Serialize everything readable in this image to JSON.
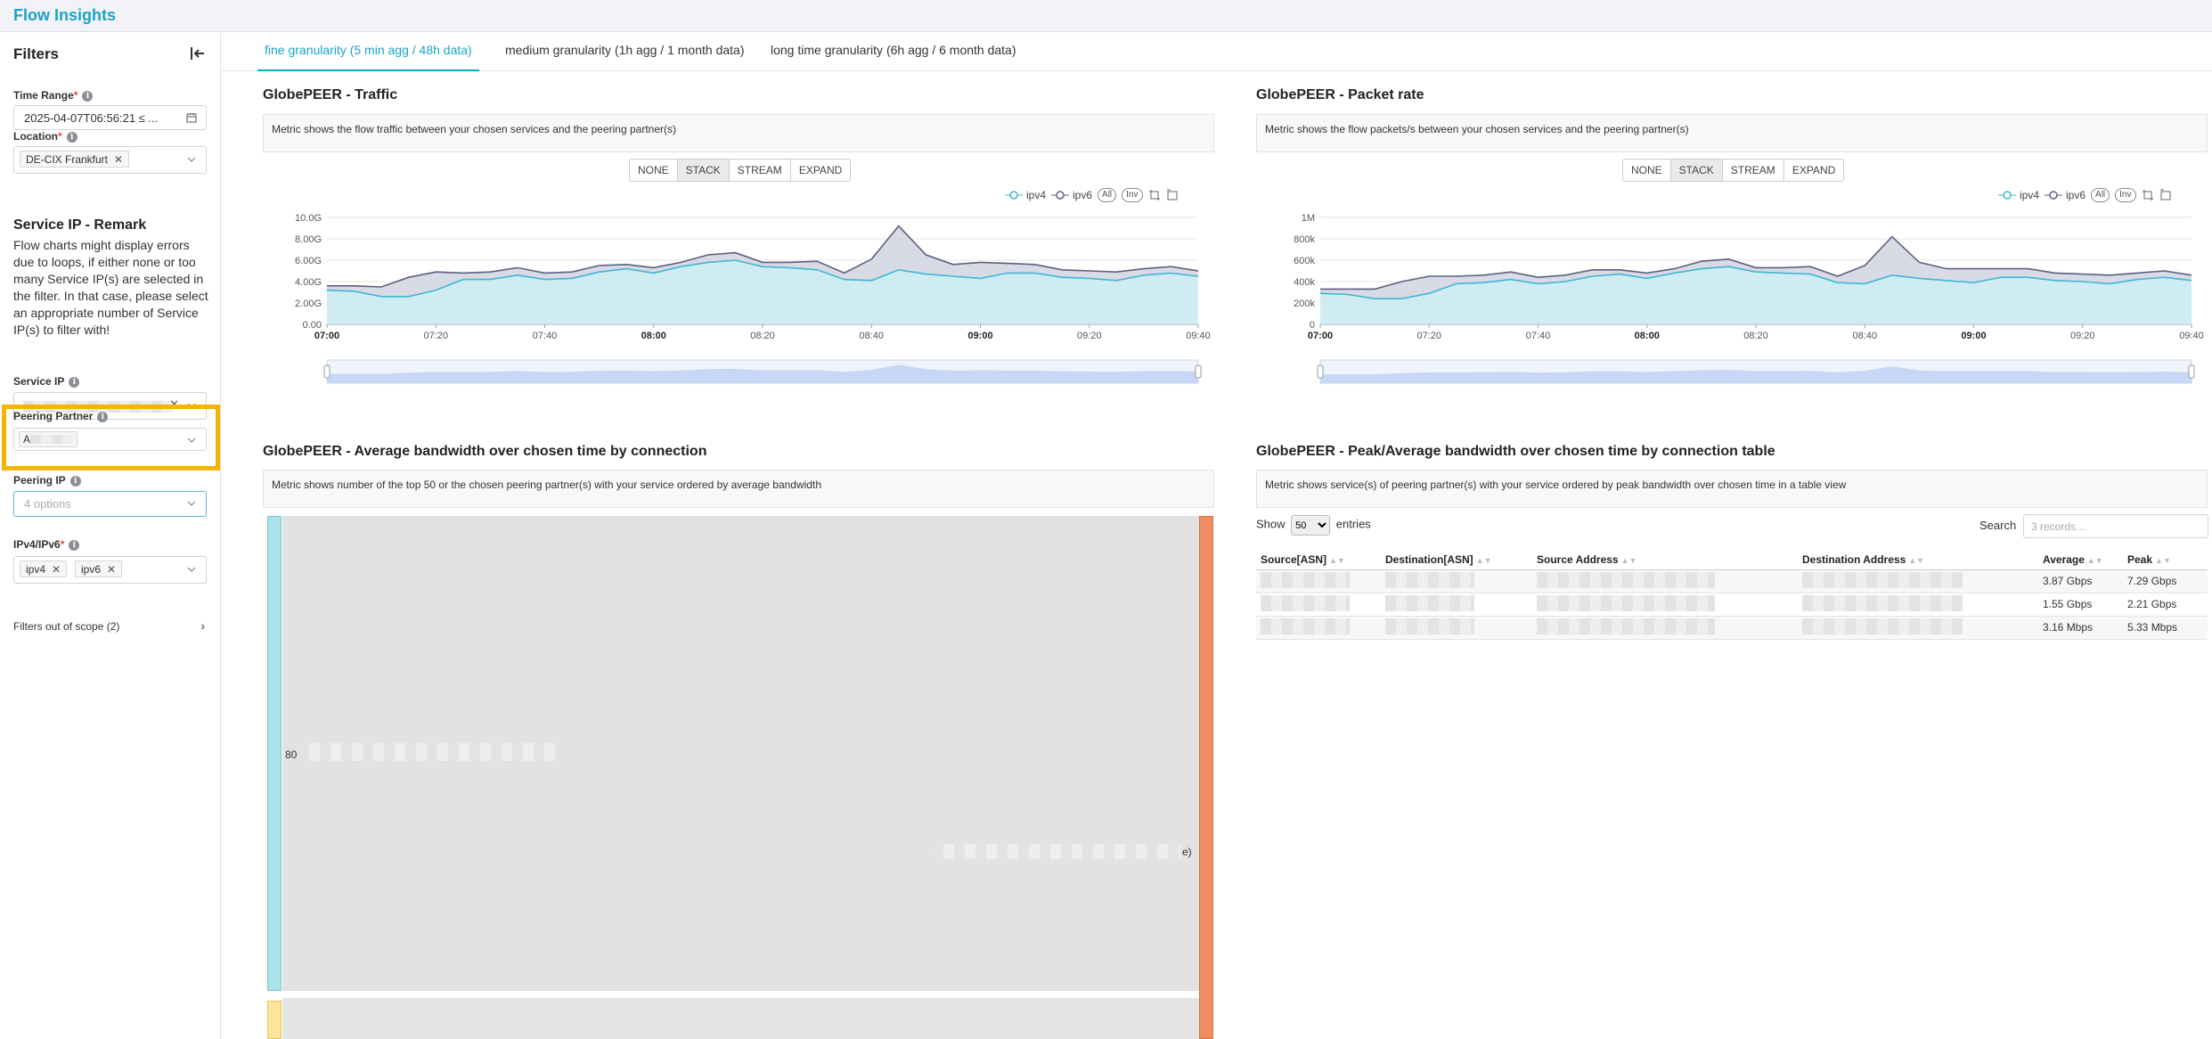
{
  "app": {
    "title": "Flow Insights"
  },
  "sidebar": {
    "title": "Filters",
    "time_range": {
      "label": "Time Range",
      "value": "2025-04-07T06:56:21 ≤ ..."
    },
    "location": {
      "label": "Location",
      "tags": [
        "DE-CIX Frankfurt"
      ]
    },
    "remark": {
      "title": "Service IP - Remark",
      "text": "Flow charts might display errors due to loops, if either none or too many Service IP(s) are selected in the filter. In that case, please select an appropriate number of Service IP(s) to filter with!"
    },
    "service_ip": {
      "label": "Service IP"
    },
    "peering_partner": {
      "label": "Peering Partner",
      "value_prefix": "A"
    },
    "peering_ip": {
      "label": "Peering IP",
      "placeholder": "4 options"
    },
    "ip_version": {
      "label": "IPv4/IPv6",
      "tags": [
        "ipv4",
        "ipv6"
      ]
    },
    "out_of_scope": {
      "label": "Filters out of scope (2)"
    }
  },
  "tabs": [
    {
      "label": "fine granularity (5 min agg / 48h data)",
      "active": true
    },
    {
      "label": "medium granularity (1h agg / 1 month data)",
      "active": false
    },
    {
      "label": "long time granularity (6h agg / 6 month data)",
      "active": false
    }
  ],
  "stack_modes": [
    "NONE",
    "STACK",
    "STREAM",
    "EXPAND"
  ],
  "active_stack_mode": "STACK",
  "legend": {
    "series": [
      "ipv4",
      "ipv6"
    ],
    "all": "All",
    "inv": "Inv"
  },
  "colors": {
    "accent": "#1ba3c8",
    "ipv4": "#41b6d3",
    "ipv6": "#5c5f80",
    "highlight": "#f4b400"
  },
  "traffic": {
    "title": "GlobePEER - Traffic",
    "description": "Metric shows the flow traffic between your chosen services and the peering partner(s)"
  },
  "packets": {
    "title": "GlobePEER - Packet rate",
    "description": "Metric shows the flow packets/s between your chosen services and the peering partner(s)"
  },
  "bandwidth": {
    "title": "GlobePEER - Average bandwidth over chosen time by connection",
    "description": "Metric shows number of the top 50 or the chosen peering partner(s) with your service ordered by average bandwidth",
    "left_label": "80",
    "right_label": "e)"
  },
  "table": {
    "title": "GlobePEER - Peak/Average bandwidth over chosen time by connection table",
    "description": "Metric shows service(s) of peering partner(s) with your service ordered by peak bandwidth over chosen time in a table view",
    "show_label": "Show",
    "entries_label": "entries",
    "page_size": "50",
    "search_label": "Search",
    "search_placeholder": "3 records...",
    "columns": [
      "Source[ASN]",
      "Destination[ASN]",
      "Source Address",
      "Destination Address",
      "Average",
      "Peak"
    ],
    "rows": [
      {
        "average": "3.87 Gbps",
        "peak": "7.29 Gbps"
      },
      {
        "average": "1.55 Gbps",
        "peak": "2.21 Gbps"
      },
      {
        "average": "3.16 Mbps",
        "peak": "5.33 Mbps"
      }
    ]
  },
  "chart_data": [
    {
      "type": "area",
      "title": "GlobePEER - Traffic",
      "stacked": true,
      "x": [
        "07:00",
        "07:05",
        "07:10",
        "07:15",
        "07:20",
        "07:25",
        "07:30",
        "07:35",
        "07:40",
        "07:45",
        "07:50",
        "07:55",
        "08:00",
        "08:05",
        "08:10",
        "08:15",
        "08:20",
        "08:25",
        "08:30",
        "08:35",
        "08:40",
        "08:45",
        "08:50",
        "08:55",
        "09:00",
        "09:05",
        "09:10",
        "09:15",
        "09:20",
        "09:25",
        "09:30",
        "09:35",
        "09:40"
      ],
      "x_ticks": [
        "07:00",
        "07:20",
        "07:40",
        "08:00",
        "08:20",
        "08:40",
        "09:00",
        "09:20",
        "09:40"
      ],
      "y_ticks": [
        "0.00",
        "2.00G",
        "4.00G",
        "6.00G",
        "8.00G",
        "10.0G"
      ],
      "ylim": [
        0,
        10
      ],
      "y_unit": "G",
      "series": [
        {
          "name": "ipv4",
          "values": [
            3.2,
            3.1,
            2.6,
            2.6,
            3.2,
            4.2,
            4.2,
            4.6,
            4.2,
            4.3,
            4.9,
            5.2,
            4.8,
            5.4,
            5.8,
            6.0,
            5.4,
            5.3,
            5.1,
            4.2,
            4.1,
            5.1,
            4.7,
            4.5,
            4.3,
            4.8,
            4.8,
            4.4,
            4.3,
            4.1,
            4.6,
            4.8,
            4.5
          ]
        },
        {
          "name": "ipv6",
          "values": [
            0.4,
            0.5,
            0.9,
            1.8,
            1.7,
            0.6,
            0.7,
            0.7,
            0.6,
            0.6,
            0.6,
            0.4,
            0.5,
            0.4,
            0.7,
            0.7,
            0.4,
            0.5,
            0.8,
            0.6,
            2.0,
            4.1,
            1.8,
            1.1,
            1.5,
            0.9,
            0.8,
            0.7,
            0.7,
            0.8,
            0.6,
            0.6,
            0.5
          ]
        }
      ]
    },
    {
      "type": "area",
      "title": "GlobePEER - Packet rate",
      "stacked": true,
      "x": [
        "07:00",
        "07:05",
        "07:10",
        "07:15",
        "07:20",
        "07:25",
        "07:30",
        "07:35",
        "07:40",
        "07:45",
        "07:50",
        "07:55",
        "08:00",
        "08:05",
        "08:10",
        "08:15",
        "08:20",
        "08:25",
        "08:30",
        "08:35",
        "08:40",
        "08:45",
        "08:50",
        "08:55",
        "09:00",
        "09:05",
        "09:10",
        "09:15",
        "09:20",
        "09:25",
        "09:30",
        "09:35",
        "09:40"
      ],
      "x_ticks": [
        "07:00",
        "07:20",
        "07:40",
        "08:00",
        "08:20",
        "08:40",
        "09:00",
        "09:20",
        "09:40"
      ],
      "y_ticks": [
        "0",
        "200k",
        "400k",
        "600k",
        "800k",
        "1M"
      ],
      "ylim": [
        0,
        1000
      ],
      "y_unit": "k",
      "series": [
        {
          "name": "ipv4",
          "values": [
            290,
            280,
            240,
            240,
            290,
            380,
            390,
            420,
            380,
            400,
            450,
            470,
            430,
            480,
            520,
            540,
            490,
            480,
            470,
            390,
            380,
            460,
            430,
            410,
            390,
            440,
            440,
            410,
            400,
            380,
            420,
            440,
            410
          ]
        },
        {
          "name": "ipv6",
          "values": [
            40,
            50,
            90,
            160,
            160,
            70,
            70,
            70,
            60,
            60,
            60,
            40,
            50,
            40,
            70,
            70,
            40,
            50,
            70,
            60,
            170,
            360,
            150,
            110,
            130,
            80,
            80,
            70,
            70,
            80,
            60,
            60,
            50
          ]
        }
      ]
    }
  ]
}
